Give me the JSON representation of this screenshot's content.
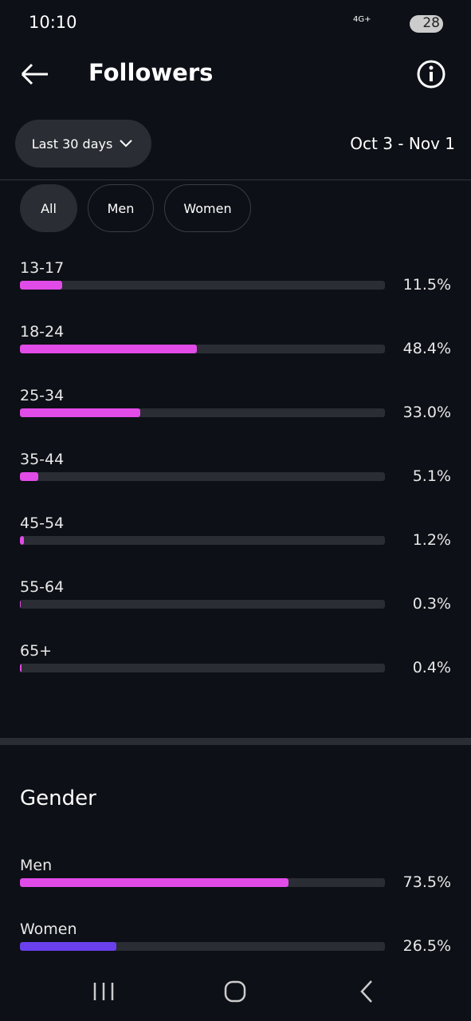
{
  "status_bar": {
    "time": "10:10",
    "network": "4G+",
    "battery": "28"
  },
  "header": {
    "title": "Followers"
  },
  "date_filter": {
    "button": "Last 30 days",
    "range": "Oct 3 - Nov 1"
  },
  "tabs": [
    "All",
    "Men",
    "Women"
  ],
  "age": {
    "xlim": [
      0,
      100
    ],
    "color": "#e14be8",
    "categories": [
      "13-17",
      "18-24",
      "25-34",
      "35-44",
      "45-54",
      "55-64",
      "65+"
    ],
    "values": [
      11.5,
      48.4,
      33.0,
      5.1,
      1.2,
      0.3,
      0.4
    ],
    "value_labels": [
      "11.5%",
      "48.4%",
      "33.0%",
      "5.1%",
      "1.2%",
      "0.3%",
      "0.4%"
    ]
  },
  "gender": {
    "title": "Gender",
    "xlim": [
      0,
      100
    ],
    "categories": [
      "Men",
      "Women"
    ],
    "colors": [
      "#e14be8",
      "#6a40ec"
    ],
    "values": [
      73.5,
      26.5
    ],
    "value_labels": [
      "73.5%",
      "26.5%"
    ]
  }
}
